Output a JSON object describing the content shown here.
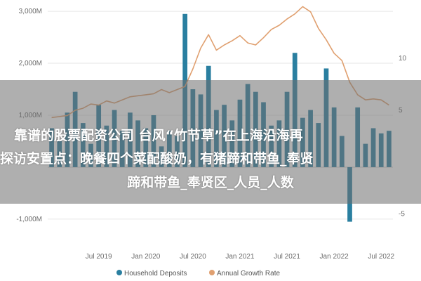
{
  "chart_data": {
    "type": "bar+line",
    "title": "",
    "xlabel": "",
    "ylabel": "",
    "x_tick_labels": [
      "Jul 2019",
      "Jan 2020",
      "Jul 2020",
      "Jan 2021",
      "Jul 2021",
      "Jan 2022",
      "Jul 2022"
    ],
    "y_left_ticks": [
      "3,000M",
      "2,000M",
      "1,000M",
      "-1,000M"
    ],
    "y_left_tick_values": [
      3000,
      2000,
      1000,
      -1000
    ],
    "y_right_ticks": [
      "10",
      "5",
      "-5"
    ],
    "y_right_tick_values": [
      10,
      5,
      -5
    ],
    "ylim_left": [
      -1380,
      3150
    ],
    "ylim_right": [
      -7.4,
      15.3
    ],
    "x_range": [
      "2019-01",
      "2022-08"
    ],
    "series": [
      {
        "name": "Household Deposits",
        "kind": "bar",
        "color": "#2a7fa0",
        "x": [
          "2019-01",
          "2019-02",
          "2019-03",
          "2019-04",
          "2019-05",
          "2019-06",
          "2019-07",
          "2019-08",
          "2019-09",
          "2019-10",
          "2019-11",
          "2019-12",
          "2020-01",
          "2020-02",
          "2020-03",
          "2020-04",
          "2020-05",
          "2020-06",
          "2020-07",
          "2020-08",
          "2020-09",
          "2020-10",
          "2020-11",
          "2020-12",
          "2021-01",
          "2021-02",
          "2021-03",
          "2021-04",
          "2021-05",
          "2021-06",
          "2021-07",
          "2021-08",
          "2021-09",
          "2021-10",
          "2021-11",
          "2021-12",
          "2022-01",
          "2022-02",
          "2022-03",
          "2022-04",
          "2022-05",
          "2022-06",
          "2022-07",
          "2022-08"
        ],
        "values": [
          750,
          500,
          1050,
          1450,
          850,
          450,
          1200,
          800,
          1100,
          700,
          1050,
          900,
          750,
          1000,
          400,
          700,
          600,
          2950,
          1500,
          1400,
          1950,
          1100,
          1200,
          900,
          1300,
          1600,
          1450,
          1250,
          800,
          900,
          1450,
          2200,
          950,
          1100,
          850,
          1900,
          1150,
          600,
          -1050,
          1150,
          450,
          750,
          650,
          700
        ]
      },
      {
        "name": "Annual Growth Rate",
        "kind": "line",
        "color": "#e0a070",
        "x": [
          "2019-01",
          "2019-02",
          "2019-03",
          "2019-04",
          "2019-05",
          "2019-06",
          "2019-07",
          "2019-08",
          "2019-09",
          "2019-10",
          "2019-11",
          "2019-12",
          "2020-01",
          "2020-02",
          "2020-03",
          "2020-04",
          "2020-05",
          "2020-06",
          "2020-07",
          "2020-08",
          "2020-09",
          "2020-10",
          "2020-11",
          "2020-12",
          "2021-01",
          "2021-02",
          "2021-03",
          "2021-04",
          "2021-05",
          "2021-06",
          "2021-07",
          "2021-08",
          "2021-09",
          "2021-10",
          "2021-11",
          "2021-12",
          "2022-01",
          "2022-02",
          "2022-03",
          "2022-04",
          "2022-05",
          "2022-06",
          "2022-07",
          "2022-08"
        ],
        "values": [
          4.3,
          4.4,
          4.5,
          5.0,
          5.2,
          5.6,
          5.5,
          5.9,
          5.7,
          6.0,
          6.3,
          6.4,
          6.5,
          6.6,
          7.0,
          6.7,
          7.0,
          7.3,
          9.0,
          11.0,
          12.3,
          10.8,
          11.3,
          11.7,
          12.2,
          11.5,
          11.3,
          12.0,
          12.8,
          13.2,
          13.8,
          14.3,
          15.0,
          14.5,
          12.9,
          11.8,
          10.5,
          9.8,
          7.7,
          6.5,
          6.0,
          6.1,
          6.0,
          5.5
        ]
      }
    ],
    "grid": true,
    "legend_position": "bottom"
  },
  "overlay": {
    "line1": "靠谱的股票配资公司 台风“竹节草”在上海沿海再",
    "line2": "探访安置点：晚餐四个菜配酸奶，有猪蹄和带鱼_奉贤",
    "line3": "蹄和带鱼_奉贤区_人员_人数"
  },
  "legend": {
    "household": "Household Deposits",
    "growth": "Annual Growth Rate"
  }
}
